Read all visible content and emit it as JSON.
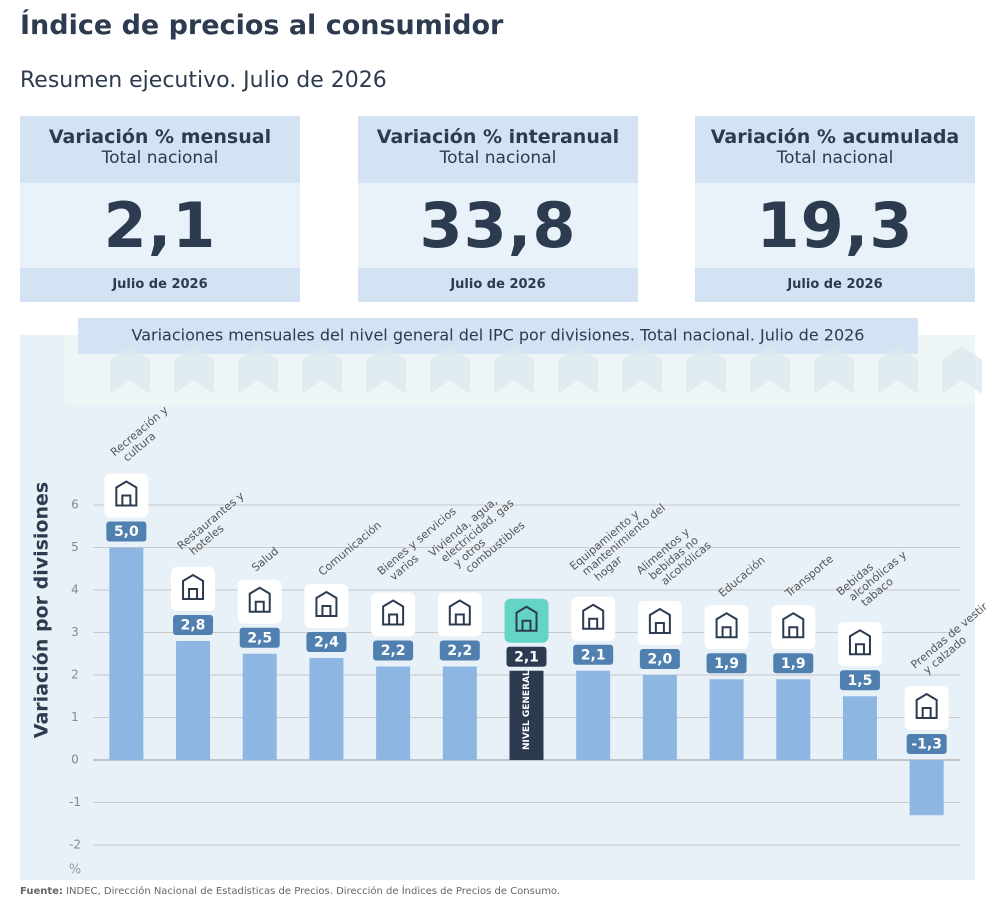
{
  "header": {
    "title": "Índice de precios al consumidor",
    "subtitle": "Resumen ejecutivo. Julio de 2026"
  },
  "cards": [
    {
      "title": "Variación % mensual",
      "subtitle": "Total nacional",
      "value": "2,1",
      "period": "Julio de 2026"
    },
    {
      "title": "Variación % interanual",
      "subtitle": "Total nacional",
      "value": "33,8",
      "period": "Julio de 2026"
    },
    {
      "title": "Variación % acumulada",
      "subtitle": "Total nacional",
      "value": "19,3",
      "period": "Julio de 2026"
    }
  ],
  "chart_data": {
    "type": "bar",
    "title": "Variaciones mensuales del nivel general del IPC por divisiones. Total nacional. Julio de 2026",
    "y_label": "Variación por divisiones",
    "unit": "%",
    "categories": [
      "Recreación y cultura",
      "Restaurantes y hoteles",
      "Salud",
      "Comunicación",
      "Bienes y servicios varios",
      "Vivienda, agua, electricidad, gas y otros combustibles",
      "NIVEL GENERAL",
      "Equipamiento y mantenimiento del hogar",
      "Alimentos y bebidas no alcohólicas",
      "Educación",
      "Transporte",
      "Bebidas alcohólicas y tabaco",
      "Prendas de vestir y calzado"
    ],
    "values": [
      5.0,
      2.8,
      2.5,
      2.4,
      2.2,
      2.2,
      2.1,
      2.1,
      2.0,
      1.9,
      1.9,
      1.5,
      -1.3
    ],
    "value_labels": [
      "5,0",
      "2,8",
      "2,5",
      "2,4",
      "2,2",
      "2,2",
      "2,1",
      "2,1",
      "2,0",
      "1,9",
      "1,9",
      "1,5",
      "-1,3"
    ],
    "colors": [
      "#8db7e2",
      "#8db7e2",
      "#8db7e2",
      "#8db7e2",
      "#8db7e2",
      "#8db7e2",
      "#2c3b50",
      "#8db7e2",
      "#8db7e2",
      "#8db7e2",
      "#8db7e2",
      "#8db7e2",
      "#8db7e2"
    ],
    "ylim": [
      -2,
      6
    ],
    "yticks": [
      -2,
      -1,
      0,
      1,
      2,
      3,
      4,
      5,
      6
    ],
    "grid": true
  },
  "source": {
    "label": "Fuente:",
    "text": "INDEC, Dirección Nacional de Estadísticas de Precios. Dirección de Índices de Precios de Consumo."
  }
}
